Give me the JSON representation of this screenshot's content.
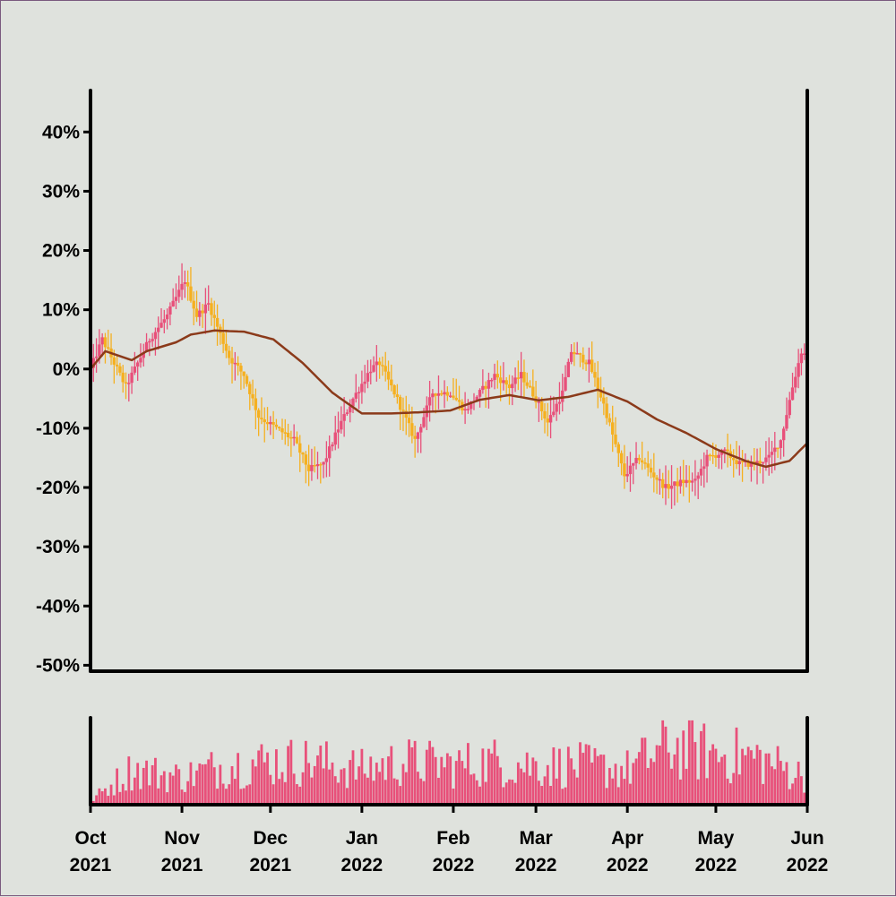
{
  "chart_data": [
    {
      "type": "candlestick",
      "title": "",
      "xlabel": "",
      "ylabel": "",
      "ylim": [
        -51,
        47
      ],
      "yticks": [
        "-50%",
        "-40%",
        "-30%",
        "-20%",
        "-10%",
        "0%",
        "10%",
        "20%",
        "30%",
        "40%"
      ],
      "ytick_values": [
        -50,
        -40,
        -30,
        -20,
        -10,
        0,
        10,
        20,
        30,
        40
      ],
      "xlim": [
        "2021-10-01",
        "2022-06-01"
      ],
      "x_ticks": [
        {
          "date": "2021-10-01",
          "month": "Oct",
          "year": "2021"
        },
        {
          "date": "2021-11-01",
          "month": "Nov",
          "year": "2021"
        },
        {
          "date": "2021-12-01",
          "month": "Dec",
          "year": "2021"
        },
        {
          "date": "2022-01-01",
          "month": "Jan",
          "year": "2022"
        },
        {
          "date": "2022-02-01",
          "month": "Feb",
          "year": "2022"
        },
        {
          "date": "2022-03-01",
          "month": "Mar",
          "year": "2022"
        },
        {
          "date": "2022-04-01",
          "month": "Apr",
          "year": "2022"
        },
        {
          "date": "2022-05-01",
          "month": "May",
          "year": "2022"
        },
        {
          "date": "2022-06-01",
          "month": "Jun",
          "year": "2022"
        }
      ],
      "close_percent_key_points": [
        {
          "date": "2021-10-01",
          "value": 0
        },
        {
          "date": "2021-10-05",
          "value": 5
        },
        {
          "date": "2021-10-10",
          "value": 0
        },
        {
          "date": "2021-10-13",
          "value": -3
        },
        {
          "date": "2021-10-21",
          "value": 5
        },
        {
          "date": "2021-10-27",
          "value": 9
        },
        {
          "date": "2021-11-02",
          "value": 15
        },
        {
          "date": "2021-11-06",
          "value": 9
        },
        {
          "date": "2021-11-10",
          "value": 11
        },
        {
          "date": "2021-11-17",
          "value": 2
        },
        {
          "date": "2021-11-22",
          "value": -1
        },
        {
          "date": "2021-11-27",
          "value": -8
        },
        {
          "date": "2021-12-03",
          "value": -10
        },
        {
          "date": "2021-12-09",
          "value": -12
        },
        {
          "date": "2021-12-14",
          "value": -17
        },
        {
          "date": "2021-12-19",
          "value": -16
        },
        {
          "date": "2021-12-24",
          "value": -10
        },
        {
          "date": "2021-12-29",
          "value": -5
        },
        {
          "date": "2022-01-04",
          "value": 0
        },
        {
          "date": "2022-01-07",
          "value": 1
        },
        {
          "date": "2022-01-12",
          "value": -4
        },
        {
          "date": "2022-01-19",
          "value": -12
        },
        {
          "date": "2022-01-25",
          "value": -4
        },
        {
          "date": "2022-01-31",
          "value": -4
        },
        {
          "date": "2022-02-05",
          "value": -7
        },
        {
          "date": "2022-02-10",
          "value": -4
        },
        {
          "date": "2022-02-15",
          "value": -1
        },
        {
          "date": "2022-02-20",
          "value": -3
        },
        {
          "date": "2022-02-24",
          "value": -1
        },
        {
          "date": "2022-03-01",
          "value": -5
        },
        {
          "date": "2022-03-05",
          "value": -9
        },
        {
          "date": "2022-03-10",
          "value": -4
        },
        {
          "date": "2022-03-13",
          "value": 3
        },
        {
          "date": "2022-03-19",
          "value": 1
        },
        {
          "date": "2022-03-24",
          "value": -6
        },
        {
          "date": "2022-03-31",
          "value": -18
        },
        {
          "date": "2022-04-05",
          "value": -15
        },
        {
          "date": "2022-04-10",
          "value": -18
        },
        {
          "date": "2022-04-14",
          "value": -20
        },
        {
          "date": "2022-04-20",
          "value": -19
        },
        {
          "date": "2022-04-24",
          "value": -19
        },
        {
          "date": "2022-04-28",
          "value": -15
        },
        {
          "date": "2022-05-04",
          "value": -14
        },
        {
          "date": "2022-05-09",
          "value": -16
        },
        {
          "date": "2022-05-14",
          "value": -16
        },
        {
          "date": "2022-05-19",
          "value": -15
        },
        {
          "date": "2022-05-23",
          "value": -12
        },
        {
          "date": "2022-05-27",
          "value": -3
        },
        {
          "date": "2022-05-30",
          "value": 3
        },
        {
          "date": "2022-06-01",
          "value": 2
        }
      ],
      "moving_average_key_points": [
        {
          "date": "2021-10-01",
          "value": 0
        },
        {
          "date": "2021-10-06",
          "value": 3
        },
        {
          "date": "2021-10-15",
          "value": 1.5
        },
        {
          "date": "2021-10-20",
          "value": 3
        },
        {
          "date": "2021-10-30",
          "value": 4.5
        },
        {
          "date": "2021-11-04",
          "value": 5.8
        },
        {
          "date": "2021-11-12",
          "value": 6.5
        },
        {
          "date": "2021-11-22",
          "value": 6.3
        },
        {
          "date": "2021-12-02",
          "value": 5
        },
        {
          "date": "2021-12-12",
          "value": 1
        },
        {
          "date": "2021-12-22",
          "value": -4
        },
        {
          "date": "2022-01-01",
          "value": -7.5
        },
        {
          "date": "2022-01-11",
          "value": -7.5
        },
        {
          "date": "2022-01-21",
          "value": -7.3
        },
        {
          "date": "2022-01-31",
          "value": -7
        },
        {
          "date": "2022-02-10",
          "value": -5.2
        },
        {
          "date": "2022-02-20",
          "value": -4.4
        },
        {
          "date": "2022-03-02",
          "value": -5.3
        },
        {
          "date": "2022-03-12",
          "value": -4.7
        },
        {
          "date": "2022-03-22",
          "value": -3.5
        },
        {
          "date": "2022-04-01",
          "value": -5.5
        },
        {
          "date": "2022-04-11",
          "value": -8.5
        },
        {
          "date": "2022-04-21",
          "value": -10.8
        },
        {
          "date": "2022-05-01",
          "value": -13.5
        },
        {
          "date": "2022-05-11",
          "value": -15.5
        },
        {
          "date": "2022-05-18",
          "value": -16.5
        },
        {
          "date": "2022-05-26",
          "value": -15.5
        },
        {
          "date": "2022-06-01",
          "value": -12.5
        }
      ],
      "colors": {
        "up": "#e8507a",
        "down": "#f5b020",
        "moving_average": "#8b3a1a",
        "background": "#dfe2dd",
        "axis": "#000000"
      }
    },
    {
      "type": "bar",
      "title": "",
      "xlabel": "",
      "ylabel": "",
      "series": "volume",
      "x_range": [
        "2021-10-01",
        "2022-06-01"
      ],
      "volume_level_key_points": [
        {
          "date": "2021-10-01",
          "value": 0.05
        },
        {
          "date": "2021-10-15",
          "value": 0.45
        },
        {
          "date": "2021-11-01",
          "value": 0.35
        },
        {
          "date": "2021-11-15",
          "value": 0.5
        },
        {
          "date": "2021-12-01",
          "value": 0.55
        },
        {
          "date": "2021-12-15",
          "value": 0.55
        },
        {
          "date": "2022-01-01",
          "value": 0.45
        },
        {
          "date": "2022-01-15",
          "value": 0.55
        },
        {
          "date": "2022-02-01",
          "value": 0.5
        },
        {
          "date": "2022-02-15",
          "value": 0.55
        },
        {
          "date": "2022-03-01",
          "value": 0.5
        },
        {
          "date": "2022-03-15",
          "value": 0.5
        },
        {
          "date": "2022-04-01",
          "value": 0.45
        },
        {
          "date": "2022-04-15",
          "value": 0.75
        },
        {
          "date": "2022-05-01",
          "value": 0.65
        },
        {
          "date": "2022-05-15",
          "value": 0.6
        },
        {
          "date": "2022-06-01",
          "value": 0.35
        }
      ],
      "color": "#e8507a",
      "ylim": [
        0,
        1
      ]
    }
  ]
}
